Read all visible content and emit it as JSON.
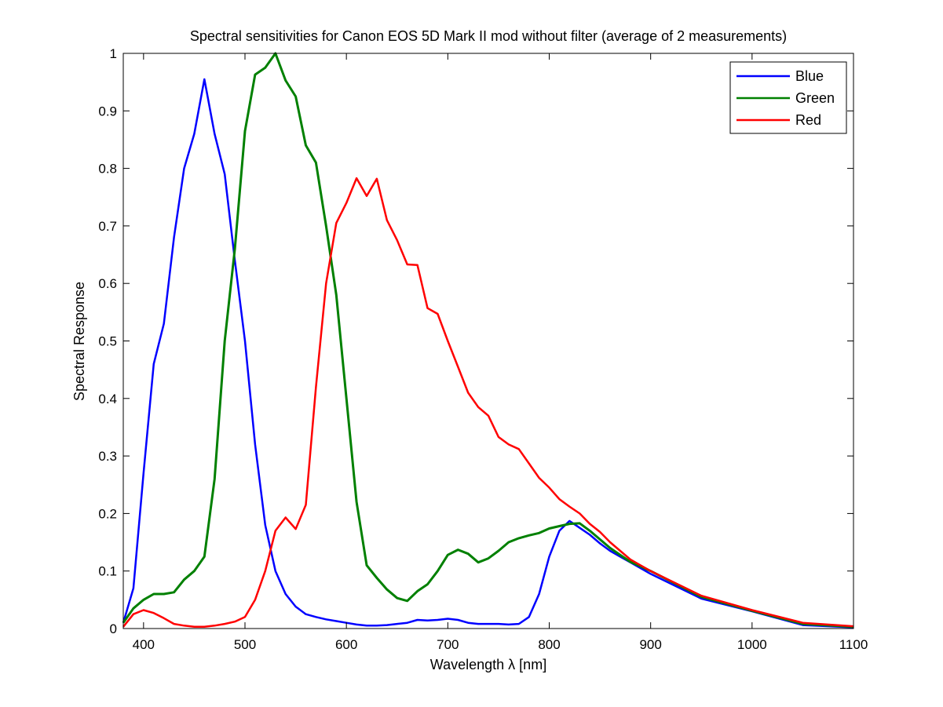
{
  "chart_data": {
    "type": "line",
    "title": "Spectral sensitivities for Canon EOS 5D Mark II mod without filter (average of 2 measurements)",
    "xlabel": "Wavelength λ [nm]",
    "ylabel": "Spectral Response",
    "xlim": [
      380,
      1100
    ],
    "ylim": [
      0,
      1
    ],
    "xticks": [
      400,
      500,
      600,
      700,
      800,
      900,
      1000,
      1100
    ],
    "yticks": [
      0,
      0.1,
      0.2,
      0.3,
      0.4,
      0.5,
      0.6,
      0.7,
      0.8,
      0.9,
      1
    ],
    "ytick_labels": [
      "0",
      "0.1",
      "0.2",
      "0.3",
      "0.4",
      "0.5",
      "0.6",
      "0.7",
      "0.8",
      "0.9",
      "1"
    ],
    "grid": false,
    "legend_position": "top-right",
    "x": [
      380,
      390,
      400,
      410,
      420,
      430,
      440,
      450,
      460,
      470,
      480,
      490,
      500,
      510,
      520,
      530,
      540,
      550,
      560,
      570,
      580,
      590,
      600,
      610,
      620,
      630,
      640,
      650,
      660,
      670,
      680,
      690,
      700,
      710,
      720,
      730,
      740,
      750,
      760,
      770,
      780,
      790,
      800,
      810,
      820,
      830,
      840,
      850,
      860,
      870,
      880,
      890,
      900,
      950,
      1000,
      1050,
      1100
    ],
    "series": [
      {
        "name": "Blue",
        "color": "#0000ff",
        "values": [
          0.01,
          0.07,
          0.27,
          0.46,
          0.53,
          0.68,
          0.8,
          0.86,
          0.955,
          0.86,
          0.79,
          0.64,
          0.5,
          0.32,
          0.18,
          0.1,
          0.06,
          0.038,
          0.025,
          0.02,
          0.016,
          0.013,
          0.01,
          0.007,
          0.005,
          0.005,
          0.006,
          0.008,
          0.01,
          0.015,
          0.014,
          0.015,
          0.017,
          0.015,
          0.01,
          0.008,
          0.008,
          0.008,
          0.007,
          0.008,
          0.02,
          0.06,
          0.125,
          0.17,
          0.187,
          0.175,
          0.163,
          0.148,
          0.135,
          0.125,
          0.115,
          0.105,
          0.095,
          0.052,
          0.03,
          0.006,
          0.002
        ]
      },
      {
        "name": "Green",
        "color": "#008000",
        "values": [
          0.01,
          0.035,
          0.05,
          0.06,
          0.06,
          0.063,
          0.085,
          0.1,
          0.125,
          0.26,
          0.5,
          0.66,
          0.865,
          0.963,
          0.975,
          1.0,
          0.953,
          0.925,
          0.84,
          0.81,
          0.7,
          0.58,
          0.4,
          0.22,
          0.11,
          0.088,
          0.068,
          0.053,
          0.048,
          0.065,
          0.077,
          0.1,
          0.128,
          0.137,
          0.13,
          0.115,
          0.122,
          0.135,
          0.15,
          0.157,
          0.162,
          0.166,
          0.174,
          0.178,
          0.182,
          0.183,
          0.17,
          0.155,
          0.14,
          0.128,
          0.116,
          0.108,
          0.1,
          0.055,
          0.031,
          0.008,
          0.003
        ]
      },
      {
        "name": "Red",
        "color": "#ff0000",
        "values": [
          0.003,
          0.025,
          0.032,
          0.027,
          0.018,
          0.008,
          0.005,
          0.003,
          0.003,
          0.005,
          0.008,
          0.012,
          0.02,
          0.05,
          0.1,
          0.17,
          0.193,
          0.173,
          0.215,
          0.42,
          0.6,
          0.705,
          0.74,
          0.783,
          0.752,
          0.782,
          0.71,
          0.675,
          0.633,
          0.632,
          0.557,
          0.547,
          0.5,
          0.455,
          0.41,
          0.385,
          0.37,
          0.333,
          0.32,
          0.312,
          0.287,
          0.262,
          0.245,
          0.225,
          0.212,
          0.2,
          0.182,
          0.168,
          0.15,
          0.135,
          0.12,
          0.11,
          0.1,
          0.057,
          0.032,
          0.01,
          0.004
        ]
      }
    ]
  }
}
